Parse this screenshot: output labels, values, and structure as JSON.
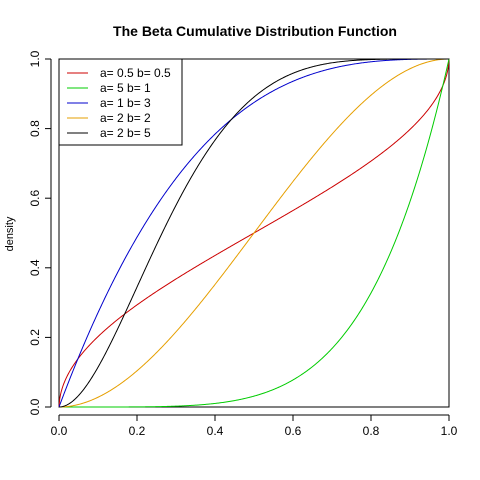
{
  "chart_data": {
    "type": "line",
    "title": "The Beta Cumulative Distribution Function",
    "xlabel": "",
    "ylabel": "density",
    "xlim": [
      0,
      1
    ],
    "ylim": [
      0,
      1
    ],
    "x_ticks": [
      "0.0",
      "0.2",
      "0.4",
      "0.6",
      "0.8",
      "1.0"
    ],
    "y_ticks": [
      "0.0",
      "0.2",
      "0.4",
      "0.6",
      "0.8",
      "1.0"
    ],
    "grid": false,
    "legend_position": "top-left",
    "series": [
      {
        "name": "a= 0.5  b= 0.5",
        "a": 0.5,
        "b": 0.5,
        "color": "#cc0000"
      },
      {
        "name": "a= 5  b= 1",
        "a": 5,
        "b": 1,
        "color": "#00cc00"
      },
      {
        "name": "a= 1  b= 3",
        "a": 1,
        "b": 3,
        "color": "#0000cc"
      },
      {
        "name": "a= 2  b= 2",
        "a": 2,
        "b": 2,
        "color": "#e69f00"
      },
      {
        "name": "a= 2  b= 5",
        "a": 2,
        "b": 5,
        "color": "#000000"
      }
    ]
  }
}
